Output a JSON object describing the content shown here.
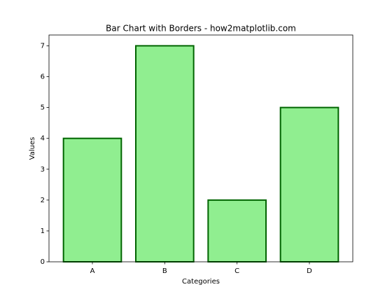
{
  "chart_data": {
    "type": "bar",
    "title": "Bar Chart with Borders - how2matplotlib.com",
    "x_label": "Categories",
    "y_label": "Values",
    "categories": [
      "A",
      "B",
      "C",
      "D"
    ],
    "values": [
      4,
      7,
      2,
      5
    ],
    "color": "#90ee90",
    "edgecolor": "#006400",
    "ylim": [
      0,
      7.35
    ],
    "yticks": [
      0,
      1,
      2,
      3,
      4,
      5,
      6,
      7
    ],
    "grid": false
  }
}
